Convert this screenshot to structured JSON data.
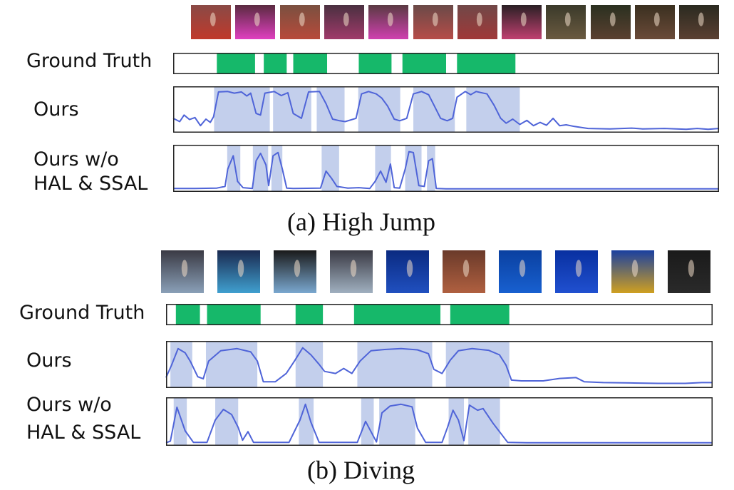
{
  "panels": [
    {
      "id": "high-jump",
      "caption": "(a) High Jump",
      "row_labels": {
        "gt": "Ground Truth",
        "ours": "Ours",
        "ablation": [
          "Ours w/o",
          "HAL & SSAL"
        ]
      },
      "thumbnails": [
        {
          "name": "frame-1",
          "top": "#8a4a46",
          "bottom": "#c0392b"
        },
        {
          "name": "frame-2",
          "top": "#5a2a40",
          "bottom": "#e040c0"
        },
        {
          "name": "frame-3",
          "top": "#7a5040",
          "bottom": "#b84a3a"
        },
        {
          "name": "frame-4",
          "top": "#4a3040",
          "bottom": "#a03a6a"
        },
        {
          "name": "frame-5",
          "top": "#5a3a42",
          "bottom": "#d040b0"
        },
        {
          "name": "frame-6",
          "top": "#6a4a48",
          "bottom": "#b64c48"
        },
        {
          "name": "frame-7",
          "top": "#704848",
          "bottom": "#a03838"
        },
        {
          "name": "frame-8",
          "top": "#2a2024",
          "bottom": "#c04070"
        },
        {
          "name": "frame-9",
          "top": "#3a3a2a",
          "bottom": "#6a5a40"
        },
        {
          "name": "frame-10",
          "top": "#2a3020",
          "bottom": "#5a4030"
        },
        {
          "name": "frame-11",
          "top": "#3a3020",
          "bottom": "#6a4a38"
        },
        {
          "name": "frame-12",
          "top": "#2a2a20",
          "bottom": "#5a4032"
        }
      ],
      "ground_truth_segments": [
        [
          0.08,
          0.15
        ],
        [
          0.166,
          0.208
        ],
        [
          0.22,
          0.282
        ],
        [
          0.34,
          0.4
        ],
        [
          0.42,
          0.5
        ],
        [
          0.52,
          0.627
        ]
      ],
      "ours_regions": [
        [
          0.075,
          0.177
        ],
        [
          0.183,
          0.253
        ],
        [
          0.263,
          0.314
        ],
        [
          0.339,
          0.416
        ],
        [
          0.44,
          0.516
        ],
        [
          0.537,
          0.635
        ]
      ],
      "ours_curve": [
        0,
        0.3,
        0.012,
        0.22,
        0.02,
        0.38,
        0.03,
        0.27,
        0.04,
        0.32,
        0.05,
        0.12,
        0.06,
        0.28,
        0.068,
        0.2,
        0.074,
        0.34,
        0.083,
        0.95,
        0.1,
        0.96,
        0.112,
        0.92,
        0.125,
        0.95,
        0.135,
        0.85,
        0.142,
        0.92,
        0.152,
        0.42,
        0.16,
        0.38,
        0.168,
        0.92,
        0.185,
        0.96,
        0.198,
        0.86,
        0.21,
        0.93,
        0.22,
        0.42,
        0.235,
        0.3,
        0.248,
        0.95,
        0.268,
        0.96,
        0.28,
        0.66,
        0.292,
        0.28,
        0.305,
        0.24,
        0.315,
        0.22,
        0.335,
        0.3,
        0.345,
        0.9,
        0.358,
        0.96,
        0.372,
        0.9,
        0.382,
        0.8,
        0.393,
        0.6,
        0.405,
        0.28,
        0.415,
        0.24,
        0.428,
        0.3,
        0.44,
        0.9,
        0.455,
        0.96,
        0.468,
        0.88,
        0.478,
        0.62,
        0.49,
        0.3,
        0.502,
        0.24,
        0.512,
        0.3,
        0.52,
        0.82,
        0.535,
        0.96,
        0.545,
        0.88,
        0.555,
        0.96,
        0.575,
        0.9,
        0.588,
        0.62,
        0.6,
        0.3,
        0.61,
        0.18,
        0.622,
        0.28,
        0.635,
        0.15,
        0.648,
        0.25,
        0.66,
        0.12,
        0.672,
        0.2,
        0.684,
        0.13,
        0.696,
        0.3,
        0.708,
        0.12,
        0.72,
        0.14,
        0.735,
        0.1,
        0.76,
        0.05,
        0.8,
        0.04,
        0.84,
        0.06,
        0.86,
        0.04,
        0.9,
        0.05,
        0.94,
        0.03,
        0.96,
        0.05,
        0.98,
        0.03,
        1.0,
        0.05
      ],
      "ablation_regions": [
        [
          0.099,
          0.123
        ],
        [
          0.146,
          0.174
        ],
        [
          0.18,
          0.2
        ],
        [
          0.272,
          0.304
        ],
        [
          0.37,
          0.399
        ],
        [
          0.425,
          0.455
        ],
        [
          0.465,
          0.48
        ]
      ],
      "ablation_curve": [
        0,
        0.03,
        0.04,
        0.03,
        0.08,
        0.04,
        0.095,
        0.08,
        0.1,
        0.5,
        0.11,
        0.82,
        0.118,
        0.2,
        0.128,
        0.05,
        0.145,
        0.03,
        0.152,
        0.7,
        0.16,
        0.88,
        0.17,
        0.6,
        0.175,
        0.1,
        0.183,
        0.82,
        0.192,
        0.9,
        0.2,
        0.5,
        0.208,
        0.04,
        0.22,
        0.03,
        0.27,
        0.04,
        0.28,
        0.45,
        0.29,
        0.28,
        0.3,
        0.08,
        0.32,
        0.04,
        0.34,
        0.05,
        0.36,
        0.03,
        0.37,
        0.2,
        0.38,
        0.45,
        0.39,
        0.18,
        0.398,
        0.62,
        0.405,
        0.05,
        0.415,
        0.04,
        0.425,
        0.5,
        0.432,
        0.92,
        0.44,
        0.9,
        0.45,
        0.1,
        0.46,
        0.08,
        0.468,
        0.7,
        0.475,
        0.75,
        0.482,
        0.03,
        0.5,
        0.02,
        1.0,
        0.02
      ]
    },
    {
      "id": "diving",
      "caption": "(b) Diving",
      "row_labels": {
        "gt": "Ground Truth",
        "ours": "Ours",
        "ablation": [
          "Ours w/o",
          "HAL & SSAL"
        ]
      },
      "thumbnails": [
        {
          "name": "frame-1",
          "top": "#3a3a44",
          "bottom": "#8aa0b8"
        },
        {
          "name": "frame-2",
          "top": "#1a2a50",
          "bottom": "#40a0d0"
        },
        {
          "name": "frame-3",
          "top": "#1a1a1a",
          "bottom": "#7aa8d0"
        },
        {
          "name": "frame-4",
          "top": "#3a3a44",
          "bottom": "#a0b0c0"
        },
        {
          "name": "frame-5",
          "top": "#0a2a80",
          "bottom": "#2050c0"
        },
        {
          "name": "frame-6",
          "top": "#6a3a2a",
          "bottom": "#b06040"
        },
        {
          "name": "frame-7",
          "top": "#0a40a0",
          "bottom": "#1860d0"
        },
        {
          "name": "frame-8",
          "top": "#0830a0",
          "bottom": "#2050d0"
        },
        {
          "name": "frame-9",
          "top": "#1a40a0",
          "bottom": "#d0a020"
        },
        {
          "name": "frame-10",
          "top": "#1a1a1a",
          "bottom": "#2a2a2a"
        }
      ],
      "ground_truth_segments": [
        [
          0.018,
          0.062
        ],
        [
          0.075,
          0.173
        ],
        [
          0.237,
          0.287
        ],
        [
          0.344,
          0.502
        ],
        [
          0.52,
          0.628
        ]
      ],
      "ours_regions": [
        [
          0.008,
          0.048
        ],
        [
          0.073,
          0.167
        ],
        [
          0.237,
          0.287
        ],
        [
          0.35,
          0.487
        ],
        [
          0.512,
          0.628
        ]
      ],
      "ours_curve": [
        0,
        0.2,
        0.01,
        0.5,
        0.022,
        0.9,
        0.035,
        0.8,
        0.045,
        0.58,
        0.058,
        0.22,
        0.068,
        0.17,
        0.078,
        0.6,
        0.1,
        0.85,
        0.13,
        0.9,
        0.155,
        0.82,
        0.167,
        0.6,
        0.178,
        0.1,
        0.2,
        0.1,
        0.22,
        0.3,
        0.235,
        0.6,
        0.25,
        0.92,
        0.265,
        0.75,
        0.28,
        0.52,
        0.29,
        0.35,
        0.31,
        0.3,
        0.325,
        0.42,
        0.34,
        0.3,
        0.355,
        0.6,
        0.375,
        0.85,
        0.4,
        0.88,
        0.43,
        0.9,
        0.46,
        0.87,
        0.48,
        0.78,
        0.49,
        0.4,
        0.505,
        0.3,
        0.52,
        0.62,
        0.535,
        0.85,
        0.56,
        0.9,
        0.59,
        0.86,
        0.61,
        0.75,
        0.622,
        0.5,
        0.632,
        0.14,
        0.65,
        0.12,
        0.69,
        0.12,
        0.72,
        0.18,
        0.75,
        0.2,
        0.765,
        0.1,
        0.8,
        0.08,
        0.85,
        0.07,
        0.9,
        0.06,
        0.95,
        0.06,
        0.98,
        0.08,
        1.0,
        0.08
      ],
      "ablation_regions": [
        [
          0.014,
          0.038
        ],
        [
          0.09,
          0.132
        ],
        [
          0.243,
          0.27
        ],
        [
          0.357,
          0.38
        ],
        [
          0.39,
          0.456
        ],
        [
          0.517,
          0.545
        ],
        [
          0.553,
          0.611
        ]
      ],
      "ablation_curve": [
        0,
        0.02,
        0.008,
        0.06,
        0.02,
        0.85,
        0.035,
        0.3,
        0.05,
        0.03,
        0.075,
        0.03,
        0.09,
        0.55,
        0.105,
        0.8,
        0.12,
        0.68,
        0.132,
        0.38,
        0.14,
        0.08,
        0.15,
        0.28,
        0.16,
        0.03,
        0.225,
        0.03,
        0.245,
        0.55,
        0.255,
        0.92,
        0.265,
        0.5,
        0.28,
        0.03,
        0.35,
        0.03,
        0.365,
        0.52,
        0.375,
        0.28,
        0.385,
        0.04,
        0.395,
        0.72,
        0.41,
        0.88,
        0.43,
        0.92,
        0.45,
        0.86,
        0.46,
        0.36,
        0.475,
        0.03,
        0.505,
        0.03,
        0.515,
        0.38,
        0.525,
        0.78,
        0.535,
        0.55,
        0.545,
        0.07,
        0.555,
        0.9,
        0.57,
        0.78,
        0.58,
        0.82,
        0.598,
        0.48,
        0.61,
        0.28,
        0.625,
        0.03,
        0.66,
        0.02,
        1.0,
        0.02
      ]
    }
  ],
  "colors": {
    "segment_green": "#16b86a",
    "region_fill": "#c3cfec",
    "curve_blue": "#4f64d8",
    "frame_stroke": "#222222"
  }
}
